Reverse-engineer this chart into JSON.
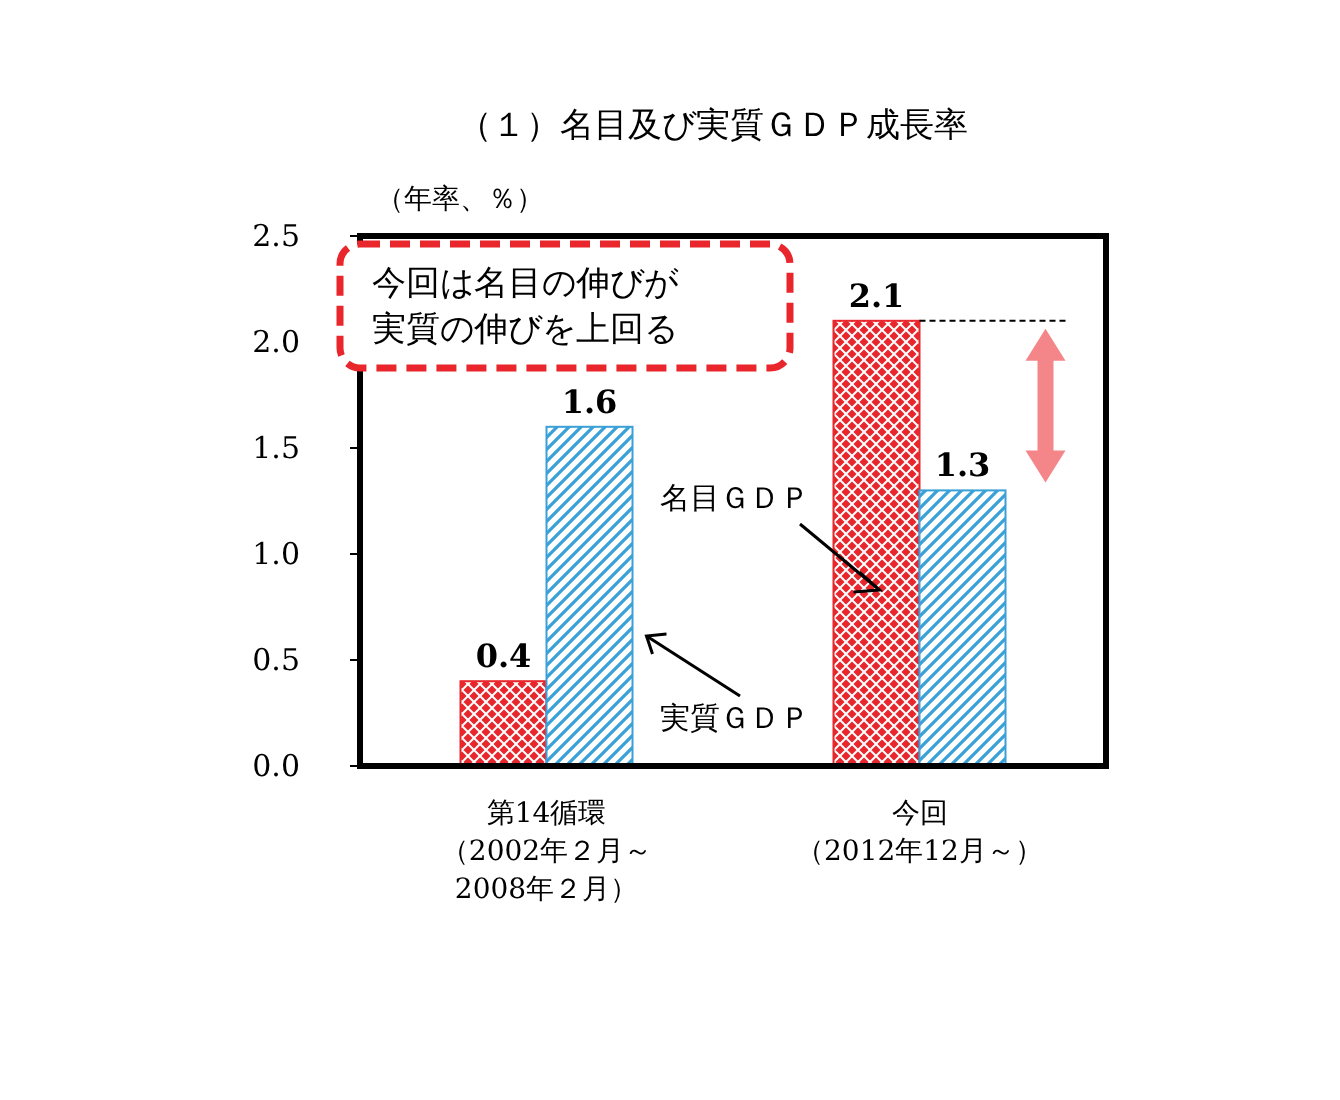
{
  "chart_data": {
    "type": "bar",
    "title": "（１）名目及び実質ＧＤＰ成長率",
    "ylabel": "（年率、％）",
    "categories": [
      "第14循環（2002年２月～2008年２月）",
      "今回（2012年12月～）"
    ],
    "series": [
      {
        "name": "名目ＧＤＰ",
        "color": "#e8262c",
        "values": [
          0.4,
          2.1
        ]
      },
      {
        "name": "実質ＧＤＰ",
        "color": "#3aa0d8",
        "values": [
          1.6,
          1.3
        ]
      }
    ],
    "ylim": [
      0,
      2.5
    ],
    "yticks": [
      {
        "value": 0,
        "label": "0.0"
      },
      {
        "value": 0.5,
        "label": "0.5"
      },
      {
        "value": 1,
        "label": "1.0"
      },
      {
        "value": 1.5,
        "label": "1.5"
      },
      {
        "value": 2,
        "label": "2.0"
      },
      {
        "value": 2.5,
        "label": "2.5"
      }
    ],
    "data_labels": true,
    "grid": false,
    "annotations": [
      "今回は名目の伸びが実質の伸びを上回る"
    ]
  }
}
